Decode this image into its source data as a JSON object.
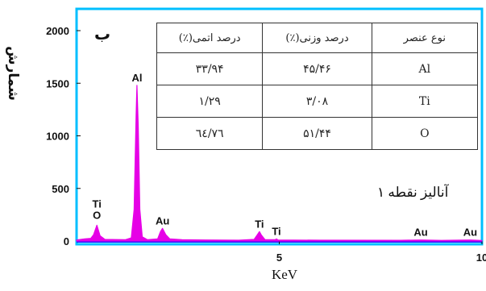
{
  "chart_data": {
    "type": "line",
    "panel_label": "ب",
    "xlabel": "KeV",
    "ylabel": "شمارش",
    "xlim": [
      0,
      10
    ],
    "ylim": [
      0,
      2100
    ],
    "x_ticks": [
      "5",
      "10"
    ],
    "y_ticks": [
      "0",
      "500",
      "1000",
      "1500",
      "2000"
    ],
    "colors": {
      "series": "#e600e6",
      "frame": "#00bfff",
      "baseline": "#1a1aff"
    },
    "peaks": [
      {
        "label": "Ti",
        "label2": "O",
        "x": 0.5,
        "y": 150
      },
      {
        "label": "Al",
        "x": 1.49,
        "y": 1480
      },
      {
        "label": "Au",
        "x": 2.12,
        "y": 120
      },
      {
        "label": "Ti",
        "x": 4.51,
        "y": 90
      },
      {
        "label": "Ti",
        "x": 4.93,
        "y": 20
      },
      {
        "label": "Au",
        "x": 8.49,
        "y": 10
      },
      {
        "label": "Au",
        "x": 9.71,
        "y": 10
      }
    ],
    "series_points": [
      [
        0.0,
        10
      ],
      [
        0.2,
        20
      ],
      [
        0.35,
        25
      ],
      [
        0.42,
        60
      ],
      [
        0.5,
        150
      ],
      [
        0.58,
        50
      ],
      [
        0.7,
        15
      ],
      [
        1.2,
        12
      ],
      [
        1.35,
        30
      ],
      [
        1.42,
        300
      ],
      [
        1.47,
        1200
      ],
      [
        1.49,
        1480
      ],
      [
        1.52,
        1100
      ],
      [
        1.56,
        300
      ],
      [
        1.62,
        40
      ],
      [
        1.75,
        12
      ],
      [
        2.0,
        20
      ],
      [
        2.07,
        90
      ],
      [
        2.12,
        120
      ],
      [
        2.2,
        60
      ],
      [
        2.3,
        20
      ],
      [
        2.6,
        12
      ],
      [
        3.2,
        10
      ],
      [
        4.0,
        8
      ],
      [
        4.38,
        15
      ],
      [
        4.46,
        60
      ],
      [
        4.51,
        90
      ],
      [
        4.56,
        55
      ],
      [
        4.65,
        12
      ],
      [
        4.9,
        12
      ],
      [
        4.93,
        20
      ],
      [
        4.97,
        10
      ],
      [
        6.0,
        8
      ],
      [
        8.0,
        7
      ],
      [
        8.49,
        10
      ],
      [
        9.0,
        6
      ],
      [
        9.71,
        10
      ],
      [
        10.0,
        5
      ]
    ],
    "table": {
      "headers": [
        "نوع عنصر",
        "درصد وزنی(٪)",
        "درصد اتمی(٪)"
      ],
      "rows": [
        [
          "Al",
          "۴۵/۴۶",
          "۳۳/۹۴"
        ],
        [
          "Ti",
          "۳/۰۸",
          "۱/۲۹"
        ],
        [
          "O",
          "۵۱/۴۴",
          "٦٤/٧٦"
        ]
      ]
    },
    "annotation": "آنالیز نقطه ۱",
    "legend": "none",
    "grid": false
  }
}
